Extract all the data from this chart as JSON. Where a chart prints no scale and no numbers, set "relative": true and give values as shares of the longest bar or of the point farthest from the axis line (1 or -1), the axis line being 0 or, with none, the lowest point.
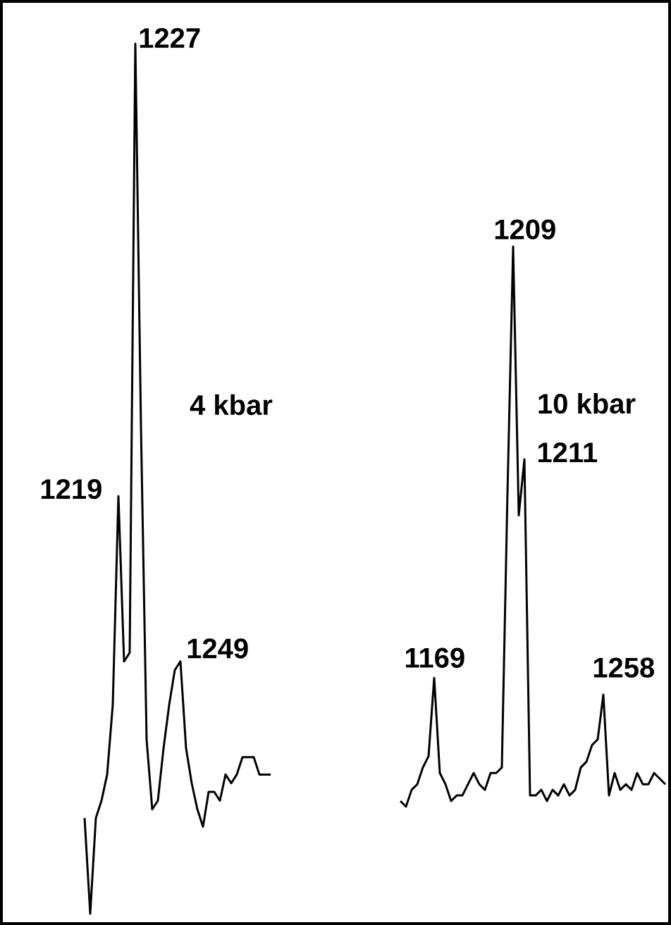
{
  "chart_data": [
    {
      "type": "line",
      "relative": true,
      "categories": [
        null,
        null,
        null,
        null,
        null,
        null,
        null,
        null,
        null,
        null,
        null,
        null,
        null,
        null,
        null,
        null,
        null,
        null,
        null,
        null,
        null,
        null,
        null,
        null,
        null,
        null,
        null,
        null,
        null,
        null,
        null,
        null,
        null,
        null
      ],
      "series": [
        {
          "name": "4 kbar",
          "color": "#000000",
          "values": [
            0.11,
            0,
            0.11,
            0.13,
            0.16,
            0.24,
            0.48,
            0.29,
            0.3,
            1.0,
            0.56,
            0.2,
            0.12,
            0.13,
            0.19,
            0.24,
            0.28,
            0.29,
            0.19,
            0.15,
            0.12,
            0.1,
            0.14,
            0.14,
            0.13,
            0.16,
            0.15,
            0.16,
            0.18,
            0.18,
            0.18,
            0.16,
            0.16,
            0.16
          ]
        }
      ],
      "annotations": [
        "1227",
        "1219",
        "1249"
      ],
      "line_style": "solid",
      "marker": "none"
    },
    {
      "type": "line",
      "relative": true,
      "categories": [
        null,
        null,
        null,
        null,
        null,
        null,
        null,
        null,
        null,
        null,
        null,
        null,
        null,
        null,
        null,
        null,
        null,
        null,
        null,
        null,
        null,
        null,
        null,
        null,
        null,
        null,
        null,
        null,
        null,
        null,
        null,
        null,
        null,
        null,
        null,
        null,
        null,
        null,
        null,
        null,
        null,
        null,
        null,
        null,
        null,
        null,
        null,
        null
      ],
      "series": [
        {
          "name": "10 kbar",
          "color": "#000000",
          "values": [
            0.01,
            0,
            0.03,
            0.04,
            0.07,
            0.09,
            0.23,
            0.06,
            0.04,
            0.01,
            0.02,
            0.02,
            0.04,
            0.06,
            0.04,
            0.03,
            0.06,
            0.06,
            0.07,
            0.56,
            1.0,
            0.52,
            0.62,
            0.02,
            0.02,
            0.03,
            0.01,
            0.03,
            0.02,
            0.04,
            0.02,
            0.03,
            0.07,
            0.08,
            0.11,
            0.12,
            0.2,
            0.02,
            0.06,
            0.03,
            0.04,
            0.03,
            0.06,
            0.04,
            0.04,
            0.06,
            0.05,
            0.04
          ]
        }
      ],
      "annotations": [
        "1169",
        "1209",
        "1211",
        "1258"
      ],
      "line_style": "solid",
      "marker": "none"
    }
  ]
}
